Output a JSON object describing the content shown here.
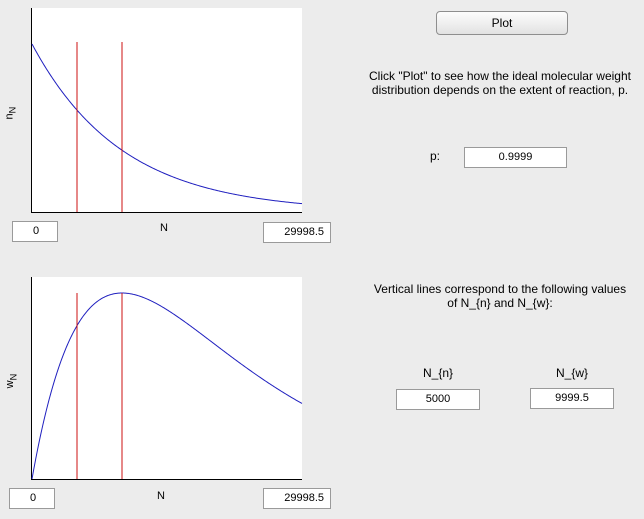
{
  "plot_button": {
    "label": "Plot"
  },
  "instructions": {
    "line1": "Click \"Plot\" to see how the ideal molecular weight",
    "line2": "distribution depends on the extent of reaction, p."
  },
  "p_field": {
    "label": "p:",
    "value": "0.9999"
  },
  "vertical_lines_text": {
    "line1": "Vertical lines correspond to the following values",
    "line2": "of N_{n} and N_{w}:"
  },
  "nn_field": {
    "label": "N_{n}",
    "value": "5000"
  },
  "nw_field": {
    "label": "N_{w}",
    "value": "9999.5"
  },
  "colors": {
    "curve": "#1f1fbf",
    "marker": "#cc1111"
  },
  "chart_data": [
    {
      "type": "line",
      "name": "number-distribution",
      "xlabel": "N",
      "ylabel": "n_N",
      "xlim": [
        0,
        29998.5
      ],
      "x_min_field": "0",
      "x_max_field": "29998.5",
      "curve": "exponential decay, p = 0.9999",
      "vertical_lines": [
        5000,
        9999.5
      ]
    },
    {
      "type": "line",
      "name": "weight-distribution",
      "xlabel": "N",
      "ylabel": "w_N",
      "xlim": [
        0,
        29998.5
      ],
      "x_min_field": "0",
      "x_max_field": "29998.5",
      "curve": "N * p^(N-1) * (1-p)^2, p = 0.9999",
      "vertical_lines": [
        5000,
        9999.5
      ]
    }
  ]
}
